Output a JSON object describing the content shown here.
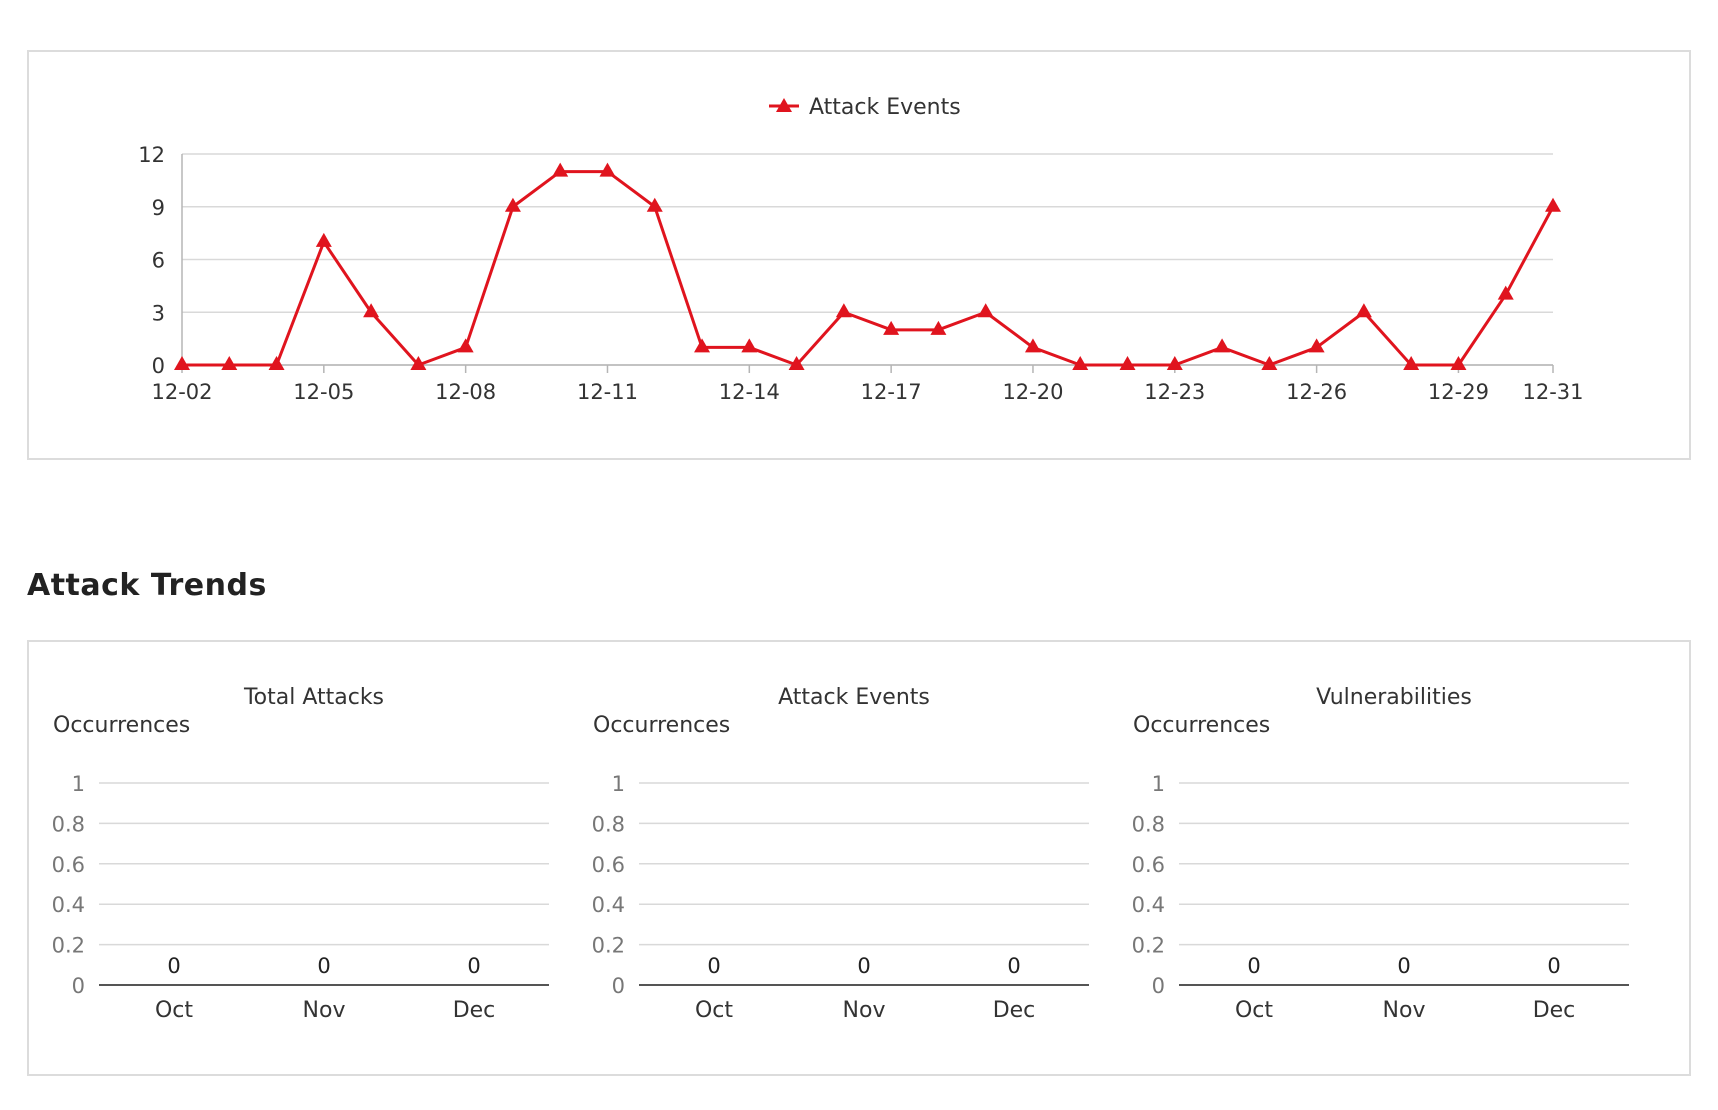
{
  "colors": {
    "series": "#e0141e",
    "grid": "#d9d9d9",
    "axis": "#b5b5b5",
    "text": "#333333"
  },
  "section": {
    "title": "Attack Trends"
  },
  "chart_data": [
    {
      "type": "line",
      "legend": "Attack Events",
      "legend_position": "top-center",
      "x": [
        "12-02",
        "12-03",
        "12-04",
        "12-05",
        "12-06",
        "12-07",
        "12-08",
        "12-09",
        "12-10",
        "12-11",
        "12-12",
        "12-13",
        "12-14",
        "12-15",
        "12-16",
        "12-17",
        "12-18",
        "12-19",
        "12-20",
        "12-21",
        "12-22",
        "12-23",
        "12-24",
        "12-25",
        "12-26",
        "12-27",
        "12-28",
        "12-29",
        "12-30",
        "12-31"
      ],
      "x_tick_labels": [
        "12-02",
        "12-05",
        "12-08",
        "12-11",
        "12-14",
        "12-17",
        "12-20",
        "12-23",
        "12-26",
        "12-29",
        "12-31"
      ],
      "y_ticks": [
        0,
        3,
        6,
        9,
        12
      ],
      "ylim": [
        0,
        12
      ],
      "series": [
        {
          "name": "Attack Events",
          "marker": "triangle",
          "values": [
            0,
            0,
            0,
            7,
            3,
            0,
            1,
            9,
            11,
            11,
            9,
            1,
            1,
            0,
            3,
            2,
            2,
            3,
            1,
            0,
            0,
            0,
            1,
            0,
            1,
            3,
            0,
            0,
            4,
            9
          ]
        }
      ]
    },
    {
      "type": "bar",
      "title": "Total Attacks",
      "ylabel": "Occurrences",
      "categories": [
        "Oct",
        "Nov",
        "Dec"
      ],
      "values": [
        0,
        0,
        0
      ],
      "y_ticks": [
        "0",
        "0.2",
        "0.4",
        "0.6",
        "0.8",
        "1"
      ],
      "ylim": [
        0,
        1
      ]
    },
    {
      "type": "bar",
      "title": "Attack Events",
      "ylabel": "Occurrences",
      "categories": [
        "Oct",
        "Nov",
        "Dec"
      ],
      "values": [
        0,
        0,
        0
      ],
      "y_ticks": [
        "0",
        "0.2",
        "0.4",
        "0.6",
        "0.8",
        "1"
      ],
      "ylim": [
        0,
        1
      ]
    },
    {
      "type": "bar",
      "title": "Vulnerabilities",
      "ylabel": "Occurrences",
      "categories": [
        "Oct",
        "Nov",
        "Dec"
      ],
      "values": [
        0,
        0,
        0
      ],
      "y_ticks": [
        "0",
        "0.2",
        "0.4",
        "0.6",
        "0.8",
        "1"
      ],
      "ylim": [
        0,
        1
      ]
    }
  ]
}
